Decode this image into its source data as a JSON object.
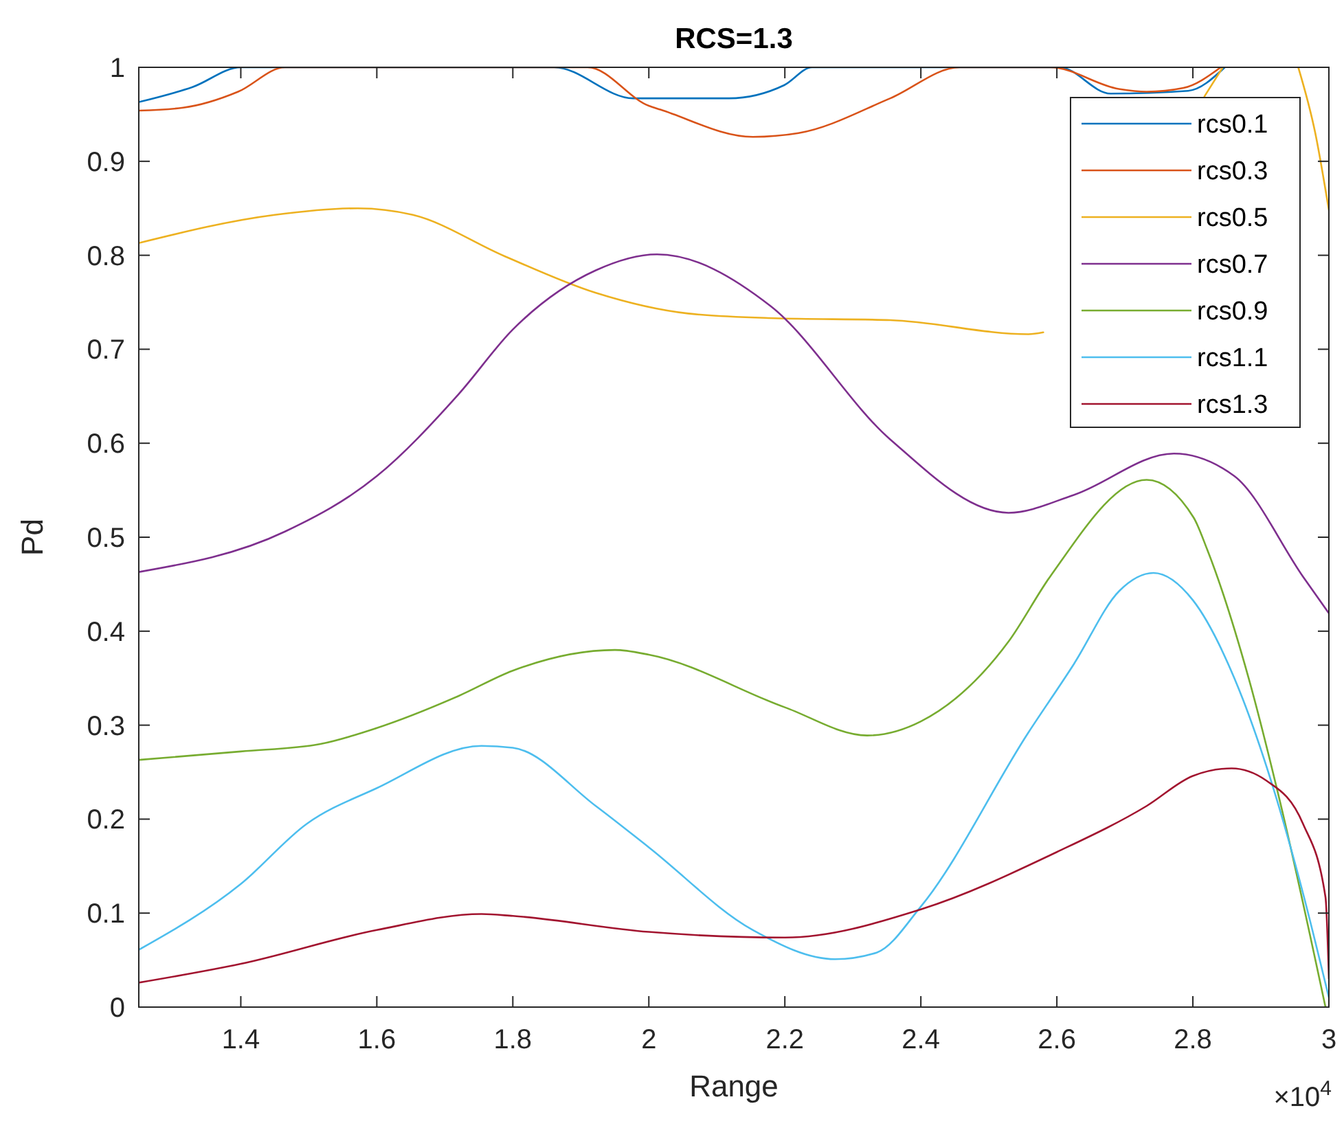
{
  "chart_data": {
    "type": "line",
    "title": "RCS=1.3",
    "xlabel": "Range",
    "ylabel": "Pd",
    "annotations": [
      "×10$^{4}$"
    ],
    "xlim": [
      1.25,
      3
    ],
    "xticks": [
      1.4,
      1.6,
      1.8,
      2,
      2.2,
      2.4,
      2.6,
      2.8,
      3
    ],
    "ylim": [
      0,
      1
    ],
    "yticks": [
      0,
      0.1,
      0.2,
      0.3,
      0.4,
      0.5,
      0.6,
      0.7,
      0.8,
      0.9,
      1
    ],
    "grid": false,
    "legend": "top right",
    "marker": "none",
    "line_style": "solid",
    "series": [
      {
        "name": "rcs0.1",
        "color": "#0072bd",
        "x": [
          1.25,
          1.329,
          1.4,
          1.861,
          1.977,
          2.017,
          2.118,
          2.199,
          2.24,
          2.604,
          2.679,
          2.793,
          2.847
        ],
        "values": [
          0.963,
          0.979,
          1.0,
          1.0,
          0.967,
          0.967,
          0.967,
          0.981,
          1.0,
          1.0,
          0.972,
          0.975,
          1.0
        ]
      },
      {
        "name": "rcs0.3",
        "color": "#d95319",
        "x": [
          1.25,
          1.315,
          1.396,
          1.465,
          1.91,
          2.0,
          2.017,
          2.153,
          2.22,
          2.355,
          2.457,
          2.59,
          2.691,
          2.732,
          2.786,
          2.841
        ],
        "values": [
          0.954,
          0.957,
          0.974,
          1.0,
          1.0,
          0.959,
          0.955,
          0.926,
          0.93,
          0.967,
          1.0,
          1.0,
          0.977,
          0.974,
          0.978,
          1.0
        ]
      },
      {
        "name": "rcs0.5",
        "color": "#edb120",
        "x": [
          1.25,
          1.45,
          1.572,
          1.653,
          1.788,
          1.922,
          2.058,
          2.185,
          2.355,
          2.558,
          2.58,
          2.7,
          2.817,
          2.844,
          2.88,
          2.955,
          2.98,
          3.0
        ],
        "values": [
          0.813,
          0.843,
          0.85,
          0.843,
          0.799,
          0.76,
          0.738,
          0.733,
          0.731,
          0.716,
          0.718,
          null,
          0.969,
          1.0,
          null,
          1.0,
          0.93,
          0.848
        ]
      },
      {
        "name": "rcs0.7",
        "color": "#7e2f8e",
        "x": [
          1.25,
          1.465,
          1.6,
          1.72,
          1.8,
          1.922,
          2.012,
          2.179,
          2.355,
          2.529,
          2.625,
          2.772,
          2.861,
          2.962,
          3.0
        ],
        "values": [
          0.463,
          0.506,
          0.565,
          0.652,
          0.721,
          0.784,
          0.801,
          0.746,
          0.604,
          0.526,
          0.545,
          0.589,
          0.565,
          0.458,
          0.419
        ]
      },
      {
        "name": "rcs0.9",
        "color": "#77ac30",
        "x": [
          1.25,
          1.4,
          1.517,
          1.6,
          1.72,
          1.8,
          1.95,
          2.0,
          2.2,
          2.321,
          2.4,
          2.529,
          2.59,
          2.732,
          2.801,
          2.821,
          2.882,
          2.928,
          2.995
        ],
        "values": [
          0.263,
          0.272,
          0.28,
          0.297,
          0.331,
          0.358,
          0.38,
          0.375,
          0.319,
          0.289,
          0.304,
          0.389,
          0.458,
          0.561,
          0.521,
          0.487,
          0.35,
          0.219,
          0.0
        ]
      },
      {
        "name": "rcs1.1",
        "color": "#4dbeee",
        "x": [
          1.25,
          1.4,
          1.497,
          1.6,
          1.754,
          1.8,
          1.922,
          2.0,
          2.153,
          2.274,
          2.335,
          2.4,
          2.558,
          2.625,
          2.692,
          2.742,
          2.8,
          2.861,
          2.914,
          2.962,
          3.0
        ],
        "values": [
          0.061,
          0.131,
          0.195,
          0.233,
          0.278,
          0.276,
          0.214,
          0.17,
          0.082,
          0.051,
          0.058,
          0.107,
          0.292,
          0.365,
          0.443,
          0.462,
          0.433,
          0.35,
          0.243,
          0.121,
          0.01
        ]
      },
      {
        "name": "rcs1.3",
        "color": "#a2142f",
        "x": [
          1.25,
          1.4,
          1.6,
          1.754,
          1.8,
          2.0,
          2.2,
          2.4,
          2.6,
          2.732,
          2.8,
          2.857,
          2.908,
          2.962,
          2.995,
          3.0
        ],
        "values": [
          0.026,
          0.046,
          0.082,
          0.099,
          0.097,
          0.08,
          0.074,
          0.104,
          0.165,
          0.214,
          0.246,
          0.254,
          0.241,
          0.195,
          0.117,
          0.03
        ]
      }
    ]
  }
}
